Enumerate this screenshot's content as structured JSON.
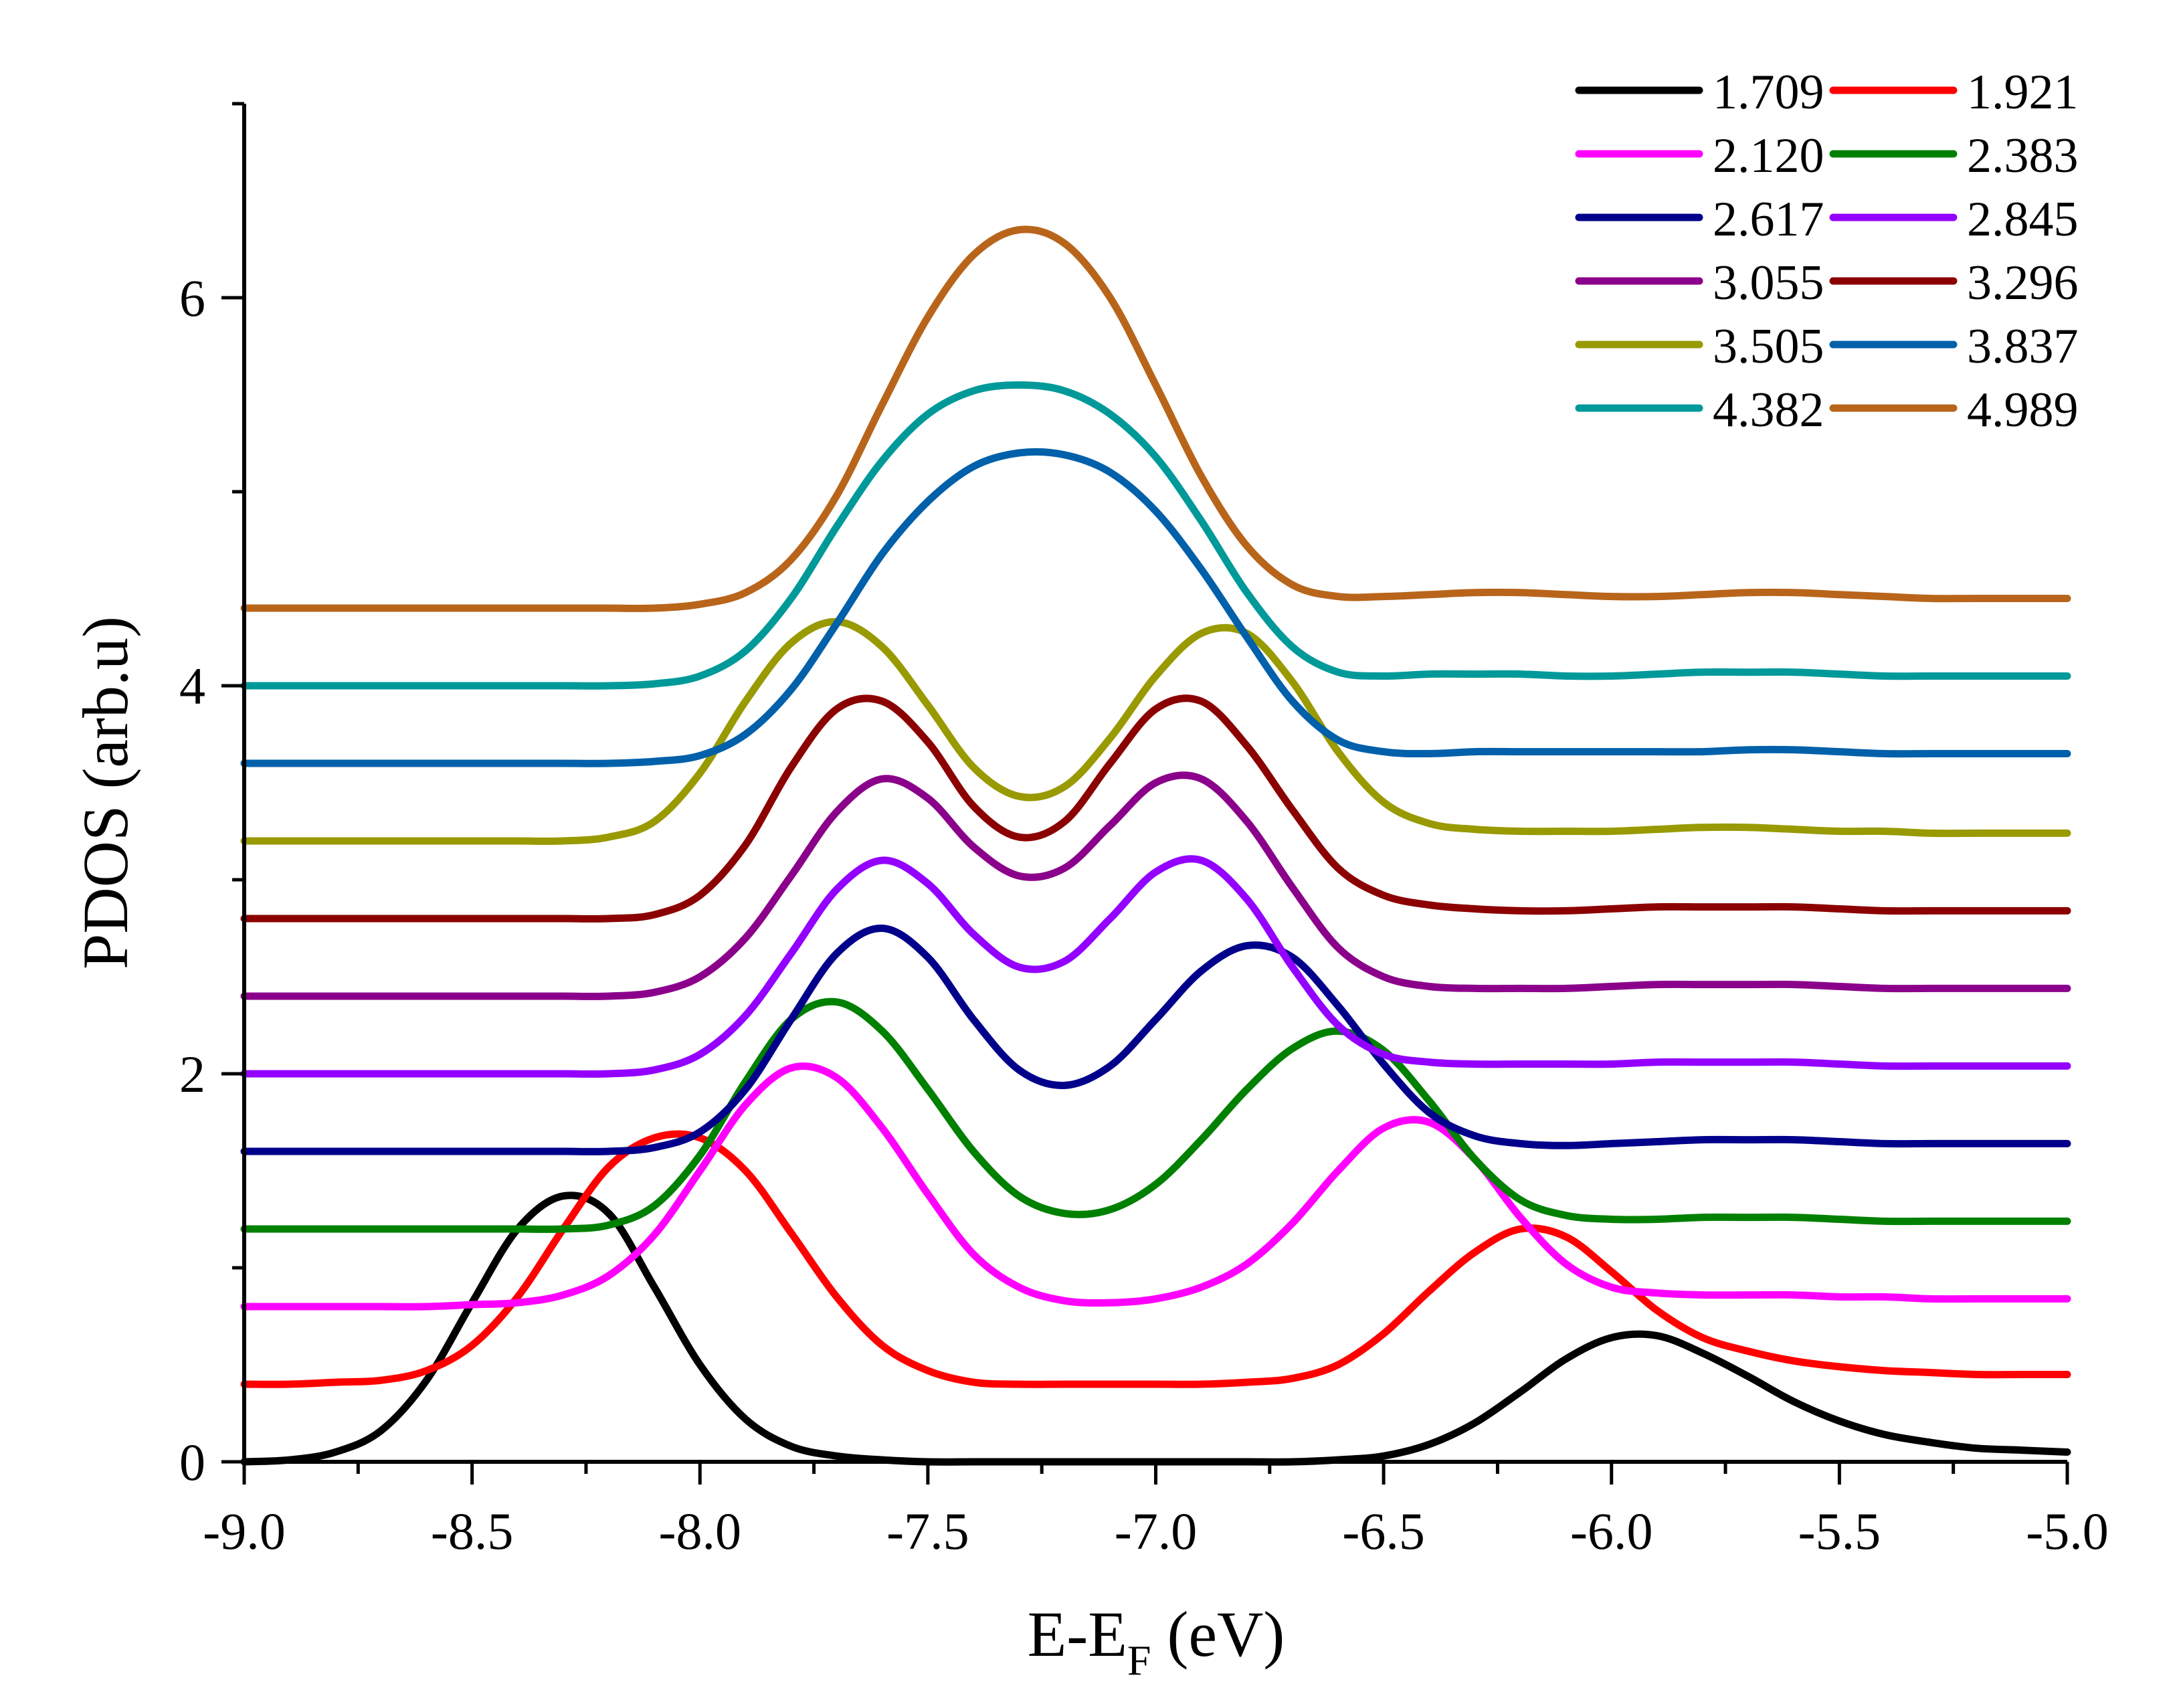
{
  "chart_data": {
    "type": "line",
    "title": "",
    "xlabel": "E-E_F (eV)",
    "xlabel_main": "E-E",
    "xlabel_sub": "F",
    "xlabel_unit": " (eV)",
    "ylabel": "PDOS (arb.u)",
    "xlim": [
      -9.0,
      -5.0
    ],
    "ylim": [
      0,
      7.0
    ],
    "x_ticks": [
      "-9.0",
      "-8.5",
      "-8.0",
      "-7.5",
      "-7.0",
      "-6.5",
      "-6.0",
      "-5.5",
      "-5.0"
    ],
    "x_tick_values": [
      -9.0,
      -8.5,
      -8.0,
      -7.5,
      -7.0,
      -6.5,
      -6.0,
      -5.5,
      -5.0
    ],
    "y_ticks": [
      "0",
      "2",
      "4",
      "6"
    ],
    "y_tick_values": [
      0,
      2,
      4,
      6
    ],
    "grid": false,
    "legend_position": "top-right",
    "x": [
      -9.0,
      -8.9,
      -8.8,
      -8.7,
      -8.6,
      -8.5,
      -8.4,
      -8.3,
      -8.2,
      -8.1,
      -8.0,
      -7.9,
      -7.8,
      -7.7,
      -7.6,
      -7.5,
      -7.4,
      -7.3,
      -7.2,
      -7.1,
      -7.0,
      -6.9,
      -6.8,
      -6.7,
      -6.6,
      -6.5,
      -6.4,
      -6.3,
      -6.2,
      -6.1,
      -6.0,
      -5.9,
      -5.8,
      -5.7,
      -5.6,
      -5.5,
      -5.4,
      -5.3,
      -5.2,
      -5.1,
      -5.0
    ],
    "series": [
      {
        "name": "1.709",
        "color": "#000000",
        "values": [
          0.0,
          0.01,
          0.05,
          0.16,
          0.42,
          0.82,
          1.2,
          1.37,
          1.28,
          0.9,
          0.5,
          0.22,
          0.08,
          0.03,
          0.01,
          0.0,
          0.0,
          0.0,
          0.0,
          0.0,
          0.0,
          0.0,
          0.0,
          0.0,
          0.01,
          0.03,
          0.09,
          0.2,
          0.36,
          0.53,
          0.64,
          0.65,
          0.56,
          0.44,
          0.31,
          0.21,
          0.14,
          0.1,
          0.07,
          0.06,
          0.05
        ]
      },
      {
        "name": "1.921",
        "color": "#ff0000",
        "values": [
          0.4,
          0.4,
          0.41,
          0.42,
          0.47,
          0.6,
          0.85,
          1.2,
          1.52,
          1.67,
          1.67,
          1.5,
          1.18,
          0.85,
          0.6,
          0.47,
          0.41,
          0.4,
          0.4,
          0.4,
          0.4,
          0.4,
          0.41,
          0.43,
          0.5,
          0.66,
          0.88,
          1.08,
          1.2,
          1.16,
          0.98,
          0.78,
          0.64,
          0.57,
          0.52,
          0.49,
          0.47,
          0.46,
          0.45,
          0.45,
          0.45
        ]
      },
      {
        "name": "2.120",
        "color": "#ff00ff",
        "values": [
          0.8,
          0.8,
          0.8,
          0.8,
          0.8,
          0.81,
          0.82,
          0.86,
          0.96,
          1.17,
          1.5,
          1.84,
          2.03,
          1.98,
          1.72,
          1.38,
          1.07,
          0.9,
          0.83,
          0.82,
          0.84,
          0.9,
          1.02,
          1.23,
          1.5,
          1.72,
          1.75,
          1.56,
          1.26,
          1.02,
          0.9,
          0.87,
          0.86,
          0.86,
          0.86,
          0.85,
          0.85,
          0.84,
          0.84,
          0.84,
          0.84
        ]
      },
      {
        "name": "2.383",
        "color": "#008000",
        "values": [
          1.2,
          1.2,
          1.2,
          1.2,
          1.2,
          1.2,
          1.2,
          1.2,
          1.22,
          1.32,
          1.58,
          1.96,
          2.28,
          2.37,
          2.22,
          1.92,
          1.6,
          1.37,
          1.28,
          1.3,
          1.43,
          1.66,
          1.92,
          2.13,
          2.22,
          2.12,
          1.86,
          1.56,
          1.35,
          1.27,
          1.25,
          1.25,
          1.26,
          1.26,
          1.26,
          1.25,
          1.24,
          1.24,
          1.24,
          1.24,
          1.24
        ]
      },
      {
        "name": "2.617",
        "color": "#00008b",
        "values": [
          1.6,
          1.6,
          1.6,
          1.6,
          1.6,
          1.6,
          1.6,
          1.6,
          1.6,
          1.62,
          1.7,
          1.92,
          2.28,
          2.62,
          2.75,
          2.6,
          2.28,
          2.02,
          1.94,
          2.04,
          2.28,
          2.53,
          2.66,
          2.6,
          2.35,
          2.05,
          1.8,
          1.68,
          1.64,
          1.63,
          1.64,
          1.65,
          1.66,
          1.66,
          1.66,
          1.65,
          1.64,
          1.64,
          1.64,
          1.64,
          1.64
        ]
      },
      {
        "name": "2.845",
        "color": "#9400ff",
        "values": [
          2.0,
          2.0,
          2.0,
          2.0,
          2.0,
          2.0,
          2.0,
          2.0,
          2.0,
          2.02,
          2.1,
          2.3,
          2.62,
          2.95,
          3.1,
          2.98,
          2.72,
          2.55,
          2.58,
          2.8,
          3.04,
          3.1,
          2.9,
          2.55,
          2.25,
          2.1,
          2.06,
          2.05,
          2.05,
          2.05,
          2.05,
          2.06,
          2.06,
          2.06,
          2.06,
          2.05,
          2.04,
          2.04,
          2.04,
          2.04,
          2.04
        ]
      },
      {
        "name": "3.055",
        "color": "#8b008b",
        "values": [
          2.4,
          2.4,
          2.4,
          2.4,
          2.4,
          2.4,
          2.4,
          2.4,
          2.4,
          2.42,
          2.5,
          2.7,
          3.02,
          3.35,
          3.52,
          3.42,
          3.17,
          3.02,
          3.06,
          3.28,
          3.5,
          3.52,
          3.3,
          2.96,
          2.65,
          2.5,
          2.45,
          2.44,
          2.44,
          2.44,
          2.45,
          2.46,
          2.46,
          2.46,
          2.46,
          2.45,
          2.44,
          2.44,
          2.44,
          2.44,
          2.44
        ]
      },
      {
        "name": "3.296",
        "color": "#8b0000",
        "values": [
          2.8,
          2.8,
          2.8,
          2.8,
          2.8,
          2.8,
          2.8,
          2.8,
          2.8,
          2.82,
          2.92,
          3.18,
          3.58,
          3.88,
          3.92,
          3.71,
          3.38,
          3.22,
          3.3,
          3.6,
          3.88,
          3.92,
          3.69,
          3.36,
          3.06,
          2.92,
          2.87,
          2.85,
          2.84,
          2.84,
          2.85,
          2.86,
          2.86,
          2.86,
          2.86,
          2.85,
          2.84,
          2.84,
          2.84,
          2.84,
          2.84
        ]
      },
      {
        "name": "3.505",
        "color": "#999900",
        "values": [
          3.2,
          3.2,
          3.2,
          3.2,
          3.2,
          3.2,
          3.2,
          3.2,
          3.22,
          3.3,
          3.55,
          3.92,
          4.22,
          4.33,
          4.2,
          3.9,
          3.58,
          3.43,
          3.48,
          3.73,
          4.05,
          4.27,
          4.27,
          4.02,
          3.66,
          3.4,
          3.29,
          3.26,
          3.25,
          3.25,
          3.25,
          3.26,
          3.27,
          3.27,
          3.26,
          3.25,
          3.25,
          3.24,
          3.24,
          3.24,
          3.24
        ]
      },
      {
        "name": "3.837",
        "color": "#0060aa",
        "values": [
          3.6,
          3.6,
          3.6,
          3.6,
          3.6,
          3.6,
          3.6,
          3.6,
          3.6,
          3.61,
          3.64,
          3.75,
          3.98,
          4.32,
          4.68,
          4.95,
          5.13,
          5.2,
          5.19,
          5.1,
          4.9,
          4.6,
          4.25,
          3.92,
          3.72,
          3.66,
          3.65,
          3.66,
          3.66,
          3.66,
          3.66,
          3.66,
          3.66,
          3.67,
          3.67,
          3.66,
          3.65,
          3.65,
          3.65,
          3.65,
          3.65
        ]
      },
      {
        "name": "4.382",
        "color": "#009999",
        "values": [
          4.0,
          4.0,
          4.0,
          4.0,
          4.0,
          4.0,
          4.0,
          4.0,
          4.0,
          4.01,
          4.05,
          4.18,
          4.45,
          4.82,
          5.16,
          5.4,
          5.52,
          5.55,
          5.52,
          5.4,
          5.18,
          4.85,
          4.48,
          4.2,
          4.07,
          4.05,
          4.06,
          4.06,
          4.06,
          4.05,
          4.05,
          4.06,
          4.07,
          4.07,
          4.07,
          4.06,
          4.05,
          4.05,
          4.05,
          4.05,
          4.05
        ]
      },
      {
        "name": "4.989",
        "color": "#b8651b",
        "values": [
          4.4,
          4.4,
          4.4,
          4.4,
          4.4,
          4.4,
          4.4,
          4.4,
          4.4,
          4.4,
          4.42,
          4.48,
          4.65,
          4.98,
          5.45,
          5.9,
          6.22,
          6.35,
          6.28,
          6.0,
          5.55,
          5.08,
          4.72,
          4.52,
          4.46,
          4.46,
          4.47,
          4.48,
          4.48,
          4.47,
          4.46,
          4.46,
          4.47,
          4.48,
          4.48,
          4.47,
          4.46,
          4.45,
          4.45,
          4.45,
          4.45
        ]
      }
    ]
  }
}
